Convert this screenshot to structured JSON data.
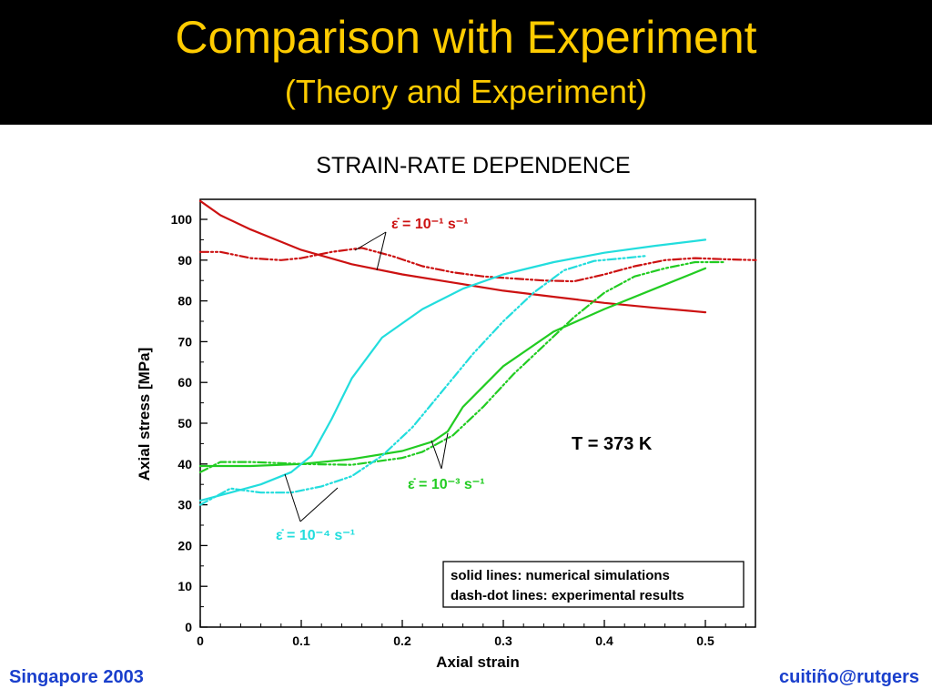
{
  "header": {
    "title": "Comparison with Experiment",
    "subtitle": "(Theory and Experiment)",
    "background": "#000000",
    "text_color": "#FFCC00"
  },
  "footer": {
    "left": "Singapore 2003",
    "right": "cuitiño@rutgers"
  },
  "chart_data": {
    "type": "line",
    "title": "STRAIN-RATE DEPENDENCE",
    "xlabel": "Axial strain",
    "ylabel": "Axial stress [MPa]",
    "xlim": [
      0,
      0.55
    ],
    "ylim": [
      0,
      105
    ],
    "xticks": [
      "0",
      "0.1",
      "0.2",
      "0.3",
      "0.4",
      "0.5"
    ],
    "yticks": [
      "0",
      "10",
      "20",
      "30",
      "40",
      "50",
      "60",
      "70",
      "80",
      "90",
      "100"
    ],
    "annotation": "T = 373 K",
    "legend_box": [
      "solid lines: numerical simulations",
      "dash-dot lines: experimental results"
    ],
    "series": [
      {
        "label": "ε̇ = 10⁻¹ s⁻¹",
        "color": "#cc1111",
        "style": "solid",
        "x": [
          0,
          0.02,
          0.05,
          0.08,
          0.1,
          0.15,
          0.2,
          0.25,
          0.3,
          0.35,
          0.4,
          0.45,
          0.5
        ],
        "y": [
          104.5,
          101,
          97.5,
          94.5,
          92.5,
          89,
          86.5,
          84.5,
          82.5,
          81,
          79.5,
          78.3,
          77.2
        ]
      },
      {
        "label": "ε̇ = 10⁻¹ s⁻¹",
        "color": "#cc1111",
        "style": "dashdot",
        "x": [
          0,
          0.02,
          0.05,
          0.08,
          0.1,
          0.13,
          0.16,
          0.19,
          0.22,
          0.25,
          0.28,
          0.31,
          0.34,
          0.37,
          0.4,
          0.43,
          0.46,
          0.49,
          0.52,
          0.55
        ],
        "y": [
          92,
          92,
          90.5,
          90,
          90.5,
          92,
          93,
          91,
          88.5,
          87,
          86,
          85.5,
          85,
          84.8,
          86.5,
          88.5,
          90,
          90.5,
          90.2,
          90
        ]
      },
      {
        "label": "ε̇ = 10⁻³ s⁻¹",
        "color": "#22cc22",
        "style": "solid",
        "x": [
          0,
          0.05,
          0.1,
          0.15,
          0.2,
          0.23,
          0.245,
          0.26,
          0.3,
          0.35,
          0.4,
          0.45,
          0.5
        ],
        "y": [
          39.5,
          39.5,
          40,
          41.2,
          43.2,
          45.5,
          48,
          54,
          64,
          72.5,
          78,
          83,
          88
        ]
      },
      {
        "label": "ε̇ = 10⁻³ s⁻¹",
        "color": "#22cc22",
        "style": "dashdot",
        "x": [
          0,
          0.02,
          0.05,
          0.1,
          0.15,
          0.2,
          0.22,
          0.25,
          0.28,
          0.31,
          0.34,
          0.37,
          0.4,
          0.43,
          0.46,
          0.49,
          0.52
        ],
        "y": [
          38,
          40.5,
          40.5,
          40,
          39.8,
          41.5,
          43,
          47,
          54,
          62,
          69,
          76,
          82,
          86,
          88,
          89.5,
          89.5
        ]
      },
      {
        "label": "ε̇ = 10⁻⁴ s⁻¹",
        "color": "#22dddd",
        "style": "solid",
        "x": [
          0,
          0.03,
          0.06,
          0.09,
          0.11,
          0.13,
          0.15,
          0.18,
          0.22,
          0.26,
          0.3,
          0.35,
          0.4,
          0.45,
          0.5
        ],
        "y": [
          31,
          33,
          35,
          38,
          42,
          51,
          61,
          71,
          78,
          83,
          86.5,
          89.5,
          91.8,
          93.5,
          95
        ]
      },
      {
        "label": "ε̇ = 10⁻⁴ s⁻¹",
        "color": "#22dddd",
        "style": "dashdot",
        "x": [
          0,
          0.03,
          0.06,
          0.09,
          0.12,
          0.15,
          0.18,
          0.21,
          0.24,
          0.27,
          0.3,
          0.33,
          0.36,
          0.39,
          0.42,
          0.44
        ],
        "y": [
          30,
          34,
          33,
          33,
          34.5,
          37,
          42,
          49,
          58,
          67,
          75,
          82,
          87.5,
          89.8,
          90.5,
          91
        ]
      }
    ],
    "curve_labels": [
      {
        "text": "ε̇ = 10⁻¹ s⁻¹",
        "color": "#cc1111"
      },
      {
        "text": "ε̇ = 10⁻³ s⁻¹",
        "color": "#22cc22"
      },
      {
        "text": "ε̇ = 10⁻⁴ s⁻¹",
        "color": "#22dddd"
      }
    ]
  }
}
